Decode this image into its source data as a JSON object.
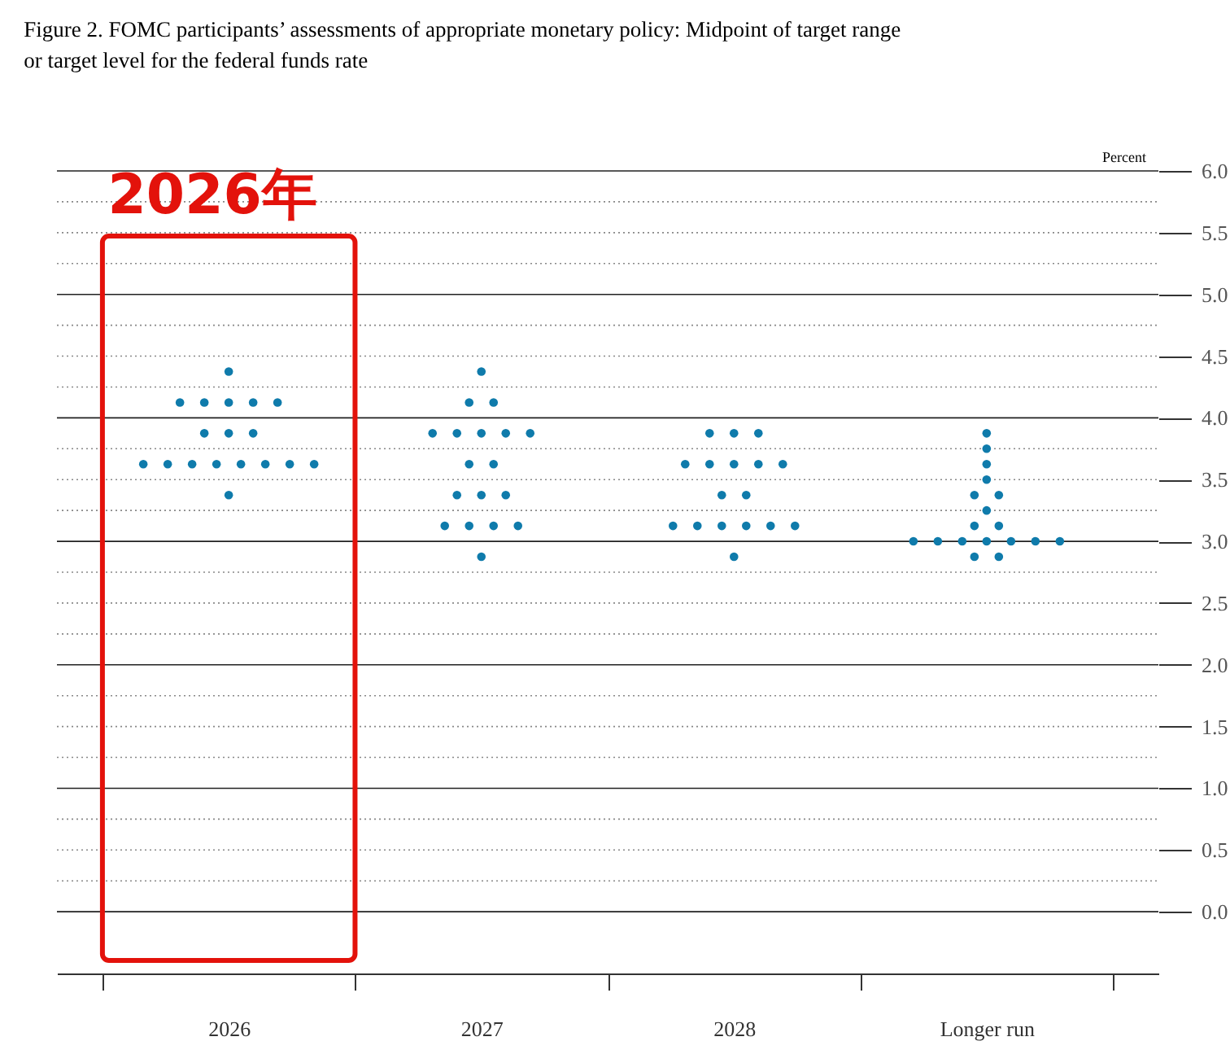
{
  "chart_data": {
    "type": "scatter",
    "title": "Figure 2. FOMC participants’ assessments of appropriate monetary policy: Midpoint of target range or target level for the federal funds rate",
    "ylabel": "Percent",
    "categories": [
      "2026",
      "2027",
      "2028",
      "Longer run"
    ],
    "series": [
      {
        "color": "#0f7bab",
        "values": [
          4.375,
          4.375,
          3.875,
          3.875
        ]
      },
      {
        "color": "#0f7bab",
        "values": [
          4.125,
          4.125,
          3.875,
          3.75
        ]
      },
      {
        "color": "#0f7bab",
        "values": [
          4.125,
          4.125,
          3.875,
          3.625
        ]
      },
      {
        "color": "#0f7bab",
        "values": [
          4.125,
          3.875,
          3.625,
          3.5
        ]
      },
      {
        "color": "#0f7bab",
        "values": [
          4.125,
          3.875,
          3.625,
          3.375
        ]
      },
      {
        "color": "#0f7bab",
        "values": [
          4.125,
          3.875,
          3.625,
          3.375
        ]
      },
      {
        "color": "#0f7bab",
        "values": [
          3.875,
          3.875,
          3.625,
          3.25
        ]
      },
      {
        "color": "#0f7bab",
        "values": [
          3.875,
          3.875,
          3.625,
          3.125
        ]
      },
      {
        "color": "#0f7bab",
        "values": [
          3.875,
          3.625,
          3.375,
          3.125
        ]
      },
      {
        "color": "#0f7bab",
        "values": [
          3.625,
          3.625,
          3.375,
          3.0
        ]
      },
      {
        "color": "#0f7bab",
        "values": [
          3.625,
          3.375,
          3.125,
          3.0
        ]
      },
      {
        "color": "#0f7bab",
        "values": [
          3.625,
          3.375,
          3.125,
          3.0
        ]
      },
      {
        "color": "#0f7bab",
        "values": [
          3.625,
          3.375,
          3.125,
          3.0
        ]
      },
      {
        "color": "#0f7bab",
        "values": [
          3.625,
          3.125,
          3.125,
          3.0
        ]
      },
      {
        "color": "#0f7bab",
        "values": [
          3.625,
          3.125,
          3.125,
          3.0
        ]
      },
      {
        "color": "#0f7bab",
        "values": [
          3.625,
          3.125,
          3.125,
          3.0
        ]
      },
      {
        "color": "#0f7bab",
        "values": [
          3.625,
          3.125,
          2.875,
          2.875
        ]
      },
      {
        "color": "#0f7bab",
        "values": [
          3.375,
          2.875,
          null,
          2.875
        ]
      }
    ],
    "ylim": [
      -0.5,
      6.0
    ],
    "yticks": [
      {
        "value": 0,
        "label": "0.0"
      },
      {
        "value": 0.25,
        "label": null
      },
      {
        "value": 0.5,
        "label": "0.5"
      },
      {
        "value": 0.75,
        "label": null
      },
      {
        "value": 1,
        "label": "1.0"
      },
      {
        "value": 1.25,
        "label": null
      },
      {
        "value": 1.5,
        "label": "1.5"
      },
      {
        "value": 1.75,
        "label": null
      },
      {
        "value": 2,
        "label": "2.0"
      },
      {
        "value": 2.25,
        "label": null
      },
      {
        "value": 2.5,
        "label": "2.5"
      },
      {
        "value": 2.75,
        "label": null
      },
      {
        "value": 3,
        "label": "3.0"
      },
      {
        "value": 3.25,
        "label": null
      },
      {
        "value": 3.5,
        "label": "3.5"
      },
      {
        "value": 3.75,
        "label": null
      },
      {
        "value": 4,
        "label": "4.0"
      },
      {
        "value": 4.25,
        "label": null
      },
      {
        "value": 4.5,
        "label": "4.5"
      },
      {
        "value": 4.75,
        "label": null
      },
      {
        "value": 5,
        "label": "5.0"
      },
      {
        "value": 5.25,
        "label": null
      },
      {
        "value": 5.5,
        "label": "5.5"
      },
      {
        "value": 5.75,
        "label": null
      },
      {
        "value": 6,
        "label": "6.0"
      }
    ],
    "grid": "y",
    "marker": "circle",
    "annotations": [
      "2026年"
    ]
  }
}
